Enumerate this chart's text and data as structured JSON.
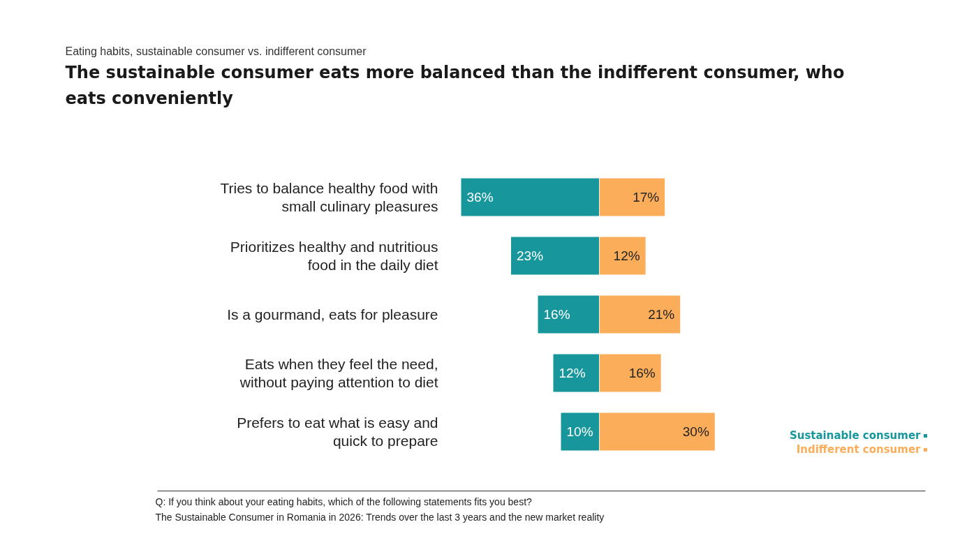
{
  "chart_data": [
    {
      "type": "bar",
      "orientation": "horizontal",
      "title": "The sustainable consumer eats more balanced than the indifferent consumer, who eats conveniently",
      "subtitle": "Eating habits, sustainable consumer vs. indifferent consumer",
      "categories": [
        "Tries to balance healthy food with small culinary pleasures",
        "Prioritizes healthy and nutritious food in the daily diet",
        "Is a gourmand, eats for pleasure",
        "Eats when they feel the need, without paying attention to diet",
        "Prefers to eat what is easy and quick to prepare"
      ],
      "xlim": [
        156,
        0
      ],
      "tick_labels": "y",
      "series": [
        {
          "name": "Sustainable consumer",
          "color": "#17979c",
          "values": [
            36,
            23,
            16,
            12,
            10
          ],
          "value_labels": [
            "36%",
            "23%",
            "16%",
            "12%",
            "10%"
          ]
        }
      ],
      "annotations": [
        "Q: If you think about your eating habits, which of the following statements fits you best?",
        "The Sustainable Consumer in Romania in 2026: Trends over the last 3 years and the new market reality"
      ]
    },
    {
      "type": "bar",
      "orientation": "horizontal",
      "categories": [
        "Tries to balance healthy food with small culinary pleasures",
        "Prioritizes healthy and nutritious food in the daily diet",
        "Is a gourmand, eats for pleasure",
        "Eats when they feel the need, without paying attention to diet",
        "Prefers to eat what is easy and quick to prepare"
      ],
      "xlim": [
        0,
        92
      ],
      "tick_labels": false,
      "series": [
        {
          "name": "Indifferent consumer",
          "color": "#fbad5a",
          "values": [
            17,
            12,
            21,
            16,
            30
          ],
          "value_labels": [
            "17%",
            "12%",
            "21%",
            "16%",
            "30%"
          ]
        }
      ],
      "legend": "bottom right"
    }
  ]
}
